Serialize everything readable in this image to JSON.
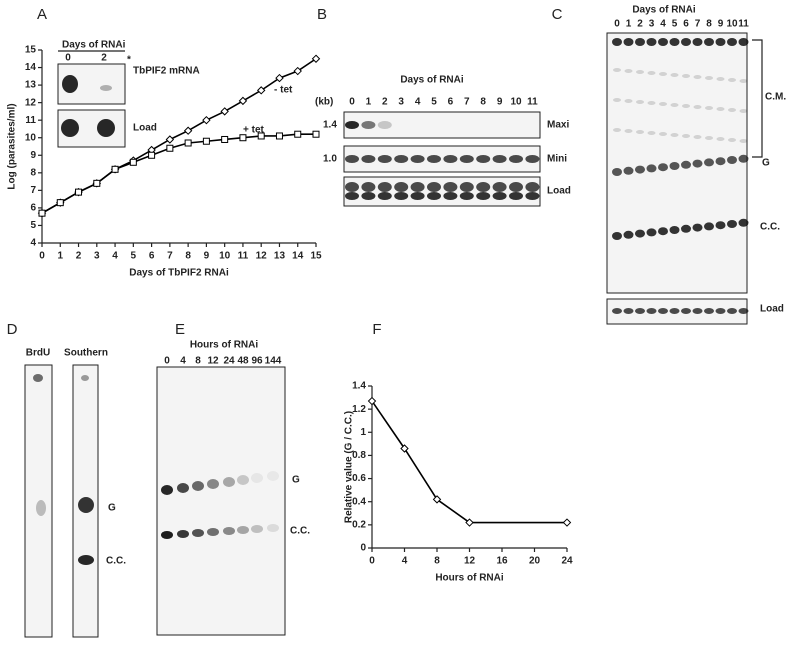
{
  "panel_letters": [
    "A",
    "B",
    "C",
    "D",
    "E",
    "F"
  ],
  "chart_data": [
    {
      "type": "line",
      "xlabel": "Days of TbPIF2 RNAi",
      "ylabel": "Log (parasites/ml)",
      "x": [
        0,
        1,
        2,
        3,
        4,
        5,
        6,
        7,
        8,
        9,
        10,
        11,
        12,
        13,
        14,
        15
      ],
      "series": [
        {
          "name": "- tet",
          "marker": "diamond",
          "color": "#000000",
          "values": [
            5.7,
            6.3,
            6.9,
            7.4,
            8.2,
            8.7,
            9.3,
            9.9,
            10.4,
            11.0,
            11.5,
            12.1,
            12.7,
            13.4,
            13.8,
            14.5
          ]
        },
        {
          "name": "+ tet",
          "marker": "square",
          "color": "#000000",
          "values": [
            5.7,
            6.3,
            6.9,
            7.4,
            8.2,
            8.6,
            9.0,
            9.4,
            9.7,
            9.8,
            9.9,
            10.0,
            10.1,
            10.1,
            10.2,
            10.2
          ]
        }
      ],
      "xlim": [
        0,
        15
      ],
      "ylim": [
        4,
        15
      ],
      "xticks": [
        0,
        1,
        2,
        3,
        4,
        5,
        6,
        7,
        8,
        9,
        10,
        11,
        12,
        13,
        14,
        15
      ],
      "yticks": [
        4,
        5,
        6,
        7,
        8,
        9,
        10,
        11,
        12,
        13,
        14,
        15
      ]
    },
    {
      "type": "line",
      "xlabel": "Hours of RNAi",
      "ylabel": "Relative value (G / C.C.)",
      "x": [
        0,
        4,
        8,
        12,
        24
      ],
      "series": [
        {
          "marker": "diamond",
          "color": "#000000",
          "values": [
            1.27,
            0.86,
            0.42,
            0.22,
            0.22
          ]
        }
      ],
      "xlim": [
        0,
        24
      ],
      "ylim": [
        0,
        1.4
      ],
      "xticks": [
        0,
        4,
        8,
        12,
        16,
        20,
        24
      ],
      "yticks": [
        0,
        0.2,
        0.4,
        0.6,
        0.8,
        1,
        1.2,
        1.4
      ]
    }
  ],
  "inset_a": {
    "title": "Days of RNAi",
    "lanes": [
      "0",
      "2"
    ],
    "asterisk": "*",
    "rows": [
      "TbPIF2 mRNA",
      "Load"
    ]
  },
  "blot_b": {
    "title": "Days of RNAi",
    "unit": "(kb)",
    "lanes": [
      "0",
      "1",
      "2",
      "3",
      "4",
      "5",
      "6",
      "7",
      "8",
      "9",
      "10",
      "11"
    ],
    "rows": [
      {
        "label": "Maxi",
        "size": "1.4"
      },
      {
        "label": "Mini",
        "size": "1.0"
      },
      {
        "label": "Load"
      }
    ]
  },
  "blot_c": {
    "title": "Days of RNAi",
    "lanes": [
      "0",
      "1",
      "2",
      "3",
      "4",
      "5",
      "6",
      "7",
      "8",
      "9",
      "10",
      "11"
    ],
    "bands": [
      "C.M.",
      "G",
      "C.C."
    ],
    "load": "Load"
  },
  "blot_d": {
    "lanes": [
      "BrdU",
      "Southern"
    ],
    "bands": [
      "G",
      "C.C."
    ]
  },
  "blot_e": {
    "title": "Hours of RNAi",
    "lanes": [
      "0",
      "4",
      "8",
      "12",
      "24",
      "48",
      "96",
      "144"
    ],
    "bands": [
      "G",
      "C.C."
    ]
  }
}
